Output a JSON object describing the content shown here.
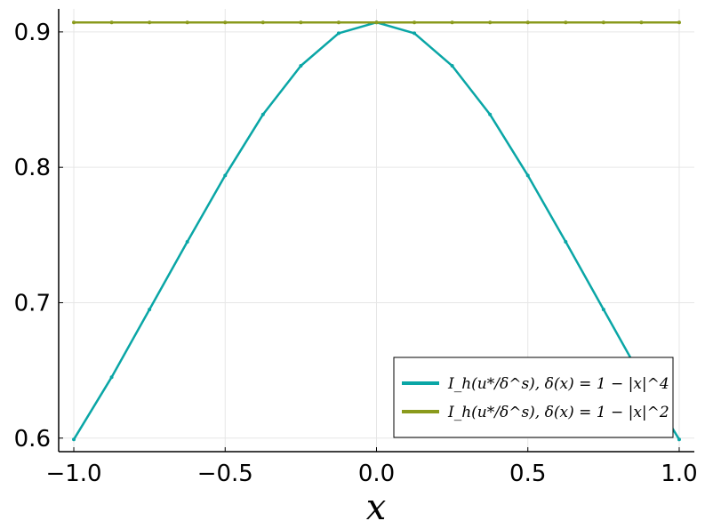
{
  "chart_data": {
    "type": "line",
    "title": "",
    "xlabel": "x",
    "ylabel": "",
    "xlim": [
      -1.05,
      1.05
    ],
    "ylim": [
      0.59,
      0.917
    ],
    "grid": true,
    "legend_position": "bottom-right",
    "x_ticks": [
      -1.0,
      -0.5,
      0.0,
      0.5,
      1.0
    ],
    "x_tick_labels": [
      "−1.0",
      "−0.5",
      "0.0",
      "0.5",
      "1.0"
    ],
    "y_ticks": [
      0.6,
      0.7,
      0.8,
      0.9
    ],
    "y_tick_labels": [
      "0.6",
      "0.7",
      "0.8",
      "0.9"
    ],
    "series": [
      {
        "name": "I_h(u*/δ^s), δ(x) = 1 − |x|^4",
        "color": "#0aa6a6",
        "x": [
          -1.0,
          -0.875,
          -0.75,
          -0.625,
          -0.5,
          -0.375,
          -0.25,
          -0.125,
          0.0,
          0.125,
          0.25,
          0.375,
          0.5,
          0.625,
          0.75,
          0.875,
          1.0
        ],
        "y": [
          0.599,
          0.645,
          0.695,
          0.745,
          0.794,
          0.839,
          0.875,
          0.899,
          0.907,
          0.899,
          0.875,
          0.839,
          0.794,
          0.745,
          0.695,
          0.645,
          0.599
        ]
      },
      {
        "name": "I_h(u*/δ^s), δ(x) = 1 − |x|^2",
        "color": "#8a9a1c",
        "x": [
          -1.0,
          -0.875,
          -0.75,
          -0.625,
          -0.5,
          -0.375,
          -0.25,
          -0.125,
          0.0,
          0.125,
          0.25,
          0.375,
          0.5,
          0.625,
          0.75,
          0.875,
          1.0
        ],
        "y": [
          0.907,
          0.907,
          0.907,
          0.907,
          0.907,
          0.907,
          0.907,
          0.907,
          0.907,
          0.907,
          0.907,
          0.907,
          0.907,
          0.907,
          0.907,
          0.907,
          0.907
        ]
      }
    ]
  }
}
